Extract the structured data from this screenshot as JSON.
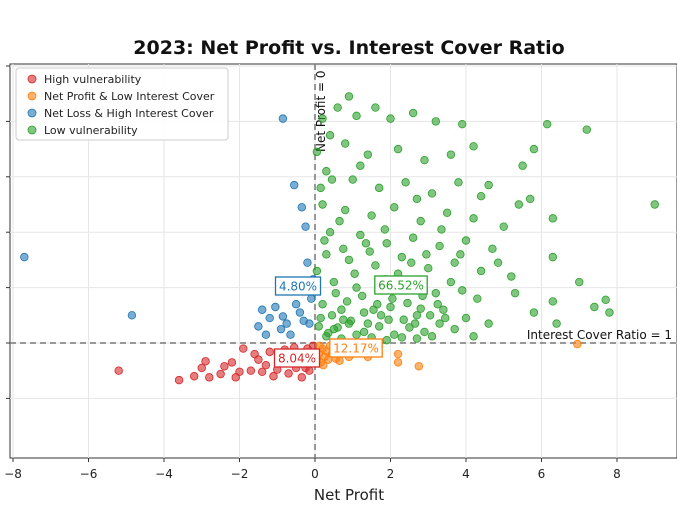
{
  "chart_data": {
    "type": "scatter",
    "title": "2023: Net Profit vs. Interest Cover Ratio",
    "xlabel": "Net Profit",
    "ylabel": "",
    "xlim": [
      -8,
      9.5
    ],
    "ylim": [
      -2.5,
      5.2
    ],
    "x_ticks": [
      -8,
      -6,
      -4,
      -2,
      0,
      2,
      4,
      6,
      8
    ],
    "x_tick_labels": [
      "−8",
      "−6",
      "−4",
      "−2",
      "0",
      "2",
      "4",
      "6",
      "8"
    ],
    "y_ticks": [
      -1,
      0,
      1,
      2,
      3,
      4,
      5
    ],
    "grid": true,
    "legend_position": "top-left",
    "reference_lines": [
      {
        "axis": "x",
        "value": 0,
        "label": "Net Profit = 0"
      },
      {
        "axis": "y",
        "value": 0,
        "label": "Interest Cover Ratio = 1"
      }
    ],
    "series": [
      {
        "name": "High vulnerability",
        "color": "#d62728",
        "share_label": "8.04%",
        "points": [
          [
            -5.2,
            -0.5
          ],
          [
            -3.6,
            -0.67
          ],
          [
            -3.2,
            -0.6
          ],
          [
            -3.0,
            -0.45
          ],
          [
            -2.8,
            -0.62
          ],
          [
            -2.9,
            -0.33
          ],
          [
            -2.5,
            -0.56
          ],
          [
            -2.2,
            -0.35
          ],
          [
            -2.1,
            -0.62
          ],
          [
            -2.0,
            -0.52
          ],
          [
            -1.9,
            -0.1
          ],
          [
            -1.6,
            -0.2
          ],
          [
            -1.5,
            -0.3
          ],
          [
            -1.3,
            -0.4
          ],
          [
            -1.2,
            -0.16
          ],
          [
            -1.1,
            -0.6
          ],
          [
            -1.0,
            -0.48
          ],
          [
            -0.9,
            -0.25
          ],
          [
            -0.8,
            -0.12
          ],
          [
            -0.7,
            -0.55
          ],
          [
            -0.6,
            -0.3
          ],
          [
            -0.5,
            -0.45
          ],
          [
            -0.4,
            -0.2
          ],
          [
            -0.35,
            -0.62
          ],
          [
            -0.3,
            -0.35
          ],
          [
            -0.2,
            -0.1
          ],
          [
            -0.15,
            -0.5
          ],
          [
            -0.1,
            -0.27
          ],
          [
            -0.05,
            -0.05
          ],
          [
            -1.7,
            -0.5
          ],
          [
            -2.4,
            -0.42
          ],
          [
            -1.4,
            -0.52
          ],
          [
            -0.55,
            -0.08
          ],
          [
            -0.25,
            -0.45
          ]
        ]
      },
      {
        "name": "Net Profit & Low Interest Cover",
        "color": "#ff7f0e",
        "share_label": "12.17%",
        "points": [
          [
            0.05,
            -0.3
          ],
          [
            0.1,
            -0.2
          ],
          [
            0.15,
            -0.35
          ],
          [
            0.2,
            -0.1
          ],
          [
            0.25,
            -0.25
          ],
          [
            0.3,
            -0.15
          ],
          [
            0.35,
            -0.3
          ],
          [
            0.4,
            -0.05
          ],
          [
            0.45,
            -0.2
          ],
          [
            0.5,
            -0.12
          ],
          [
            0.55,
            -0.28
          ],
          [
            0.6,
            -0.08
          ],
          [
            0.7,
            -0.18
          ],
          [
            0.8,
            -0.1
          ],
          [
            0.9,
            -0.25
          ],
          [
            1.0,
            -0.05
          ],
          [
            1.1,
            -0.15
          ],
          [
            1.4,
            -0.25
          ],
          [
            1.6,
            -0.1
          ],
          [
            2.2,
            -0.2
          ],
          [
            2.2,
            -0.35
          ],
          [
            2.75,
            -0.42
          ],
          [
            6.95,
            -0.02
          ],
          [
            0.12,
            -0.05
          ],
          [
            0.22,
            -0.4
          ],
          [
            0.65,
            -0.32
          ]
        ]
      },
      {
        "name": "Net Loss & High Interest Cover",
        "color": "#1f77b4",
        "share_label": "4.80%",
        "points": [
          [
            -7.7,
            1.55
          ],
          [
            -4.85,
            0.5
          ],
          [
            -0.85,
            4.05
          ],
          [
            -0.55,
            2.85
          ],
          [
            -0.35,
            2.45
          ],
          [
            -0.25,
            2.1
          ],
          [
            -0.2,
            1.45
          ],
          [
            -0.45,
            1.1
          ],
          [
            -0.6,
            0.95
          ],
          [
            -0.5,
            0.7
          ],
          [
            -0.4,
            0.55
          ],
          [
            -0.3,
            0.4
          ],
          [
            -0.75,
            0.35
          ],
          [
            -0.9,
            0.25
          ],
          [
            -1.2,
            0.45
          ],
          [
            -1.4,
            0.6
          ],
          [
            -1.5,
            0.3
          ],
          [
            -1.3,
            0.15
          ],
          [
            -0.65,
            0.15
          ],
          [
            -0.15,
            0.35
          ],
          [
            -0.1,
            0.8
          ],
          [
            -0.05,
            1.15
          ],
          [
            -1.05,
            0.65
          ],
          [
            -0.85,
            0.48
          ]
        ]
      },
      {
        "name": "Low vulnerability",
        "color": "#2ca02c",
        "share_label": "66.52%",
        "points": [
          [
            0.6,
            4.25
          ],
          [
            1.1,
            4.1
          ],
          [
            1.6,
            4.25
          ],
          [
            2.0,
            4.05
          ],
          [
            2.6,
            4.15
          ],
          [
            3.2,
            4.0
          ],
          [
            3.9,
            3.95
          ],
          [
            6.15,
            3.95
          ],
          [
            7.2,
            3.85
          ],
          [
            0.8,
            3.6
          ],
          [
            1.4,
            3.4
          ],
          [
            2.2,
            3.5
          ],
          [
            2.9,
            3.3
          ],
          [
            3.6,
            3.4
          ],
          [
            4.2,
            3.55
          ],
          [
            5.5,
            3.2
          ],
          [
            5.8,
            3.5
          ],
          [
            0.3,
            3.1
          ],
          [
            1.0,
            2.95
          ],
          [
            1.7,
            2.8
          ],
          [
            2.4,
            2.9
          ],
          [
            3.1,
            2.7
          ],
          [
            3.8,
            2.9
          ],
          [
            4.6,
            2.85
          ],
          [
            5.7,
            2.6
          ],
          [
            0.2,
            2.5
          ],
          [
            0.8,
            2.4
          ],
          [
            1.5,
            2.3
          ],
          [
            2.1,
            2.45
          ],
          [
            2.8,
            2.2
          ],
          [
            3.5,
            2.35
          ],
          [
            4.2,
            2.25
          ],
          [
            5.0,
            2.1
          ],
          [
            6.3,
            2.25
          ],
          [
            9.0,
            2.5
          ],
          [
            0.4,
            2.0
          ],
          [
            1.2,
            1.95
          ],
          [
            1.9,
            1.8
          ],
          [
            2.6,
            1.9
          ],
          [
            3.3,
            1.75
          ],
          [
            4.0,
            1.85
          ],
          [
            4.7,
            1.7
          ],
          [
            6.3,
            1.55
          ],
          [
            0.3,
            1.6
          ],
          [
            0.9,
            1.5
          ],
          [
            1.6,
            1.4
          ],
          [
            2.3,
            1.55
          ],
          [
            3.0,
            1.35
          ],
          [
            3.7,
            1.45
          ],
          [
            4.4,
            1.3
          ],
          [
            5.2,
            1.2
          ],
          [
            7.0,
            1.1
          ],
          [
            0.5,
            1.1
          ],
          [
            1.1,
            1.0
          ],
          [
            1.8,
            0.95
          ],
          [
            2.5,
            1.05
          ],
          [
            3.2,
            0.9
          ],
          [
            3.9,
            0.95
          ],
          [
            4.3,
            0.8
          ],
          [
            6.3,
            0.75
          ],
          [
            0.2,
            0.7
          ],
          [
            0.7,
            0.6
          ],
          [
            1.3,
            0.55
          ],
          [
            2.0,
            0.65
          ],
          [
            2.7,
            0.5
          ],
          [
            3.4,
            0.6
          ],
          [
            4.0,
            0.45
          ],
          [
            4.6,
            0.35
          ],
          [
            6.4,
            0.35
          ],
          [
            7.4,
            0.65
          ],
          [
            7.8,
            0.55
          ],
          [
            7.7,
            0.78
          ],
          [
            5.3,
            0.9
          ],
          [
            5.8,
            0.55
          ],
          [
            0.1,
            0.3
          ],
          [
            0.5,
            0.25
          ],
          [
            0.9,
            0.35
          ],
          [
            1.3,
            0.2
          ],
          [
            1.7,
            0.3
          ],
          [
            2.1,
            0.15
          ],
          [
            2.5,
            0.28
          ],
          [
            2.9,
            0.2
          ],
          [
            3.3,
            0.35
          ],
          [
            3.7,
            0.25
          ],
          [
            4.2,
            0.12
          ],
          [
            0.3,
            0.12
          ],
          [
            0.7,
            0.08
          ],
          [
            1.1,
            0.15
          ],
          [
            1.5,
            0.1
          ],
          [
            1.9,
            0.05
          ],
          [
            2.3,
            0.1
          ],
          [
            2.7,
            0.08
          ],
          [
            3.1,
            0.12
          ],
          [
            0.15,
            0.45
          ],
          [
            0.45,
            0.5
          ],
          [
            0.85,
            0.75
          ],
          [
            1.25,
            0.85
          ],
          [
            1.65,
            0.7
          ],
          [
            2.05,
            0.8
          ],
          [
            2.45,
            0.72
          ],
          [
            2.85,
            0.85
          ],
          [
            3.25,
            0.7
          ],
          [
            0.05,
            1.3
          ],
          [
            0.25,
            1.85
          ],
          [
            0.65,
            2.2
          ],
          [
            1.45,
            1.65
          ],
          [
            2.2,
            1.25
          ],
          [
            2.95,
            1.6
          ],
          [
            3.6,
            1.1
          ],
          [
            0.15,
            2.8
          ],
          [
            0.05,
            3.45
          ],
          [
            0.4,
            3.75
          ],
          [
            1.2,
            3.2
          ],
          [
            0.95,
            0.4
          ],
          [
            1.75,
            0.5
          ],
          [
            2.35,
            0.42
          ],
          [
            0.55,
            0.9
          ],
          [
            1.05,
            1.25
          ],
          [
            0.35,
            0.18
          ],
          [
            0.75,
            0.42
          ],
          [
            1.55,
            0.6
          ],
          [
            1.95,
            0.42
          ],
          [
            2.65,
            0.35
          ],
          [
            3.05,
            0.5
          ],
          [
            3.45,
            0.45
          ],
          [
            0.6,
            0.28
          ],
          [
            1.4,
            0.35
          ],
          [
            2.8,
            0.62
          ],
          [
            1.85,
            1.15
          ],
          [
            2.55,
            1.45
          ],
          [
            1.35,
            1.8
          ],
          [
            0.75,
            1.7
          ],
          [
            3.85,
            1.6
          ],
          [
            4.85,
            1.45
          ],
          [
            5.4,
            2.5
          ],
          [
            4.4,
            2.65
          ],
          [
            0.2,
            4.05
          ],
          [
            0.9,
            4.45
          ],
          [
            1.85,
            2.05
          ],
          [
            3.35,
            2.05
          ],
          [
            2.7,
            2.6
          ],
          [
            0.45,
            2.95
          ]
        ]
      }
    ]
  }
}
